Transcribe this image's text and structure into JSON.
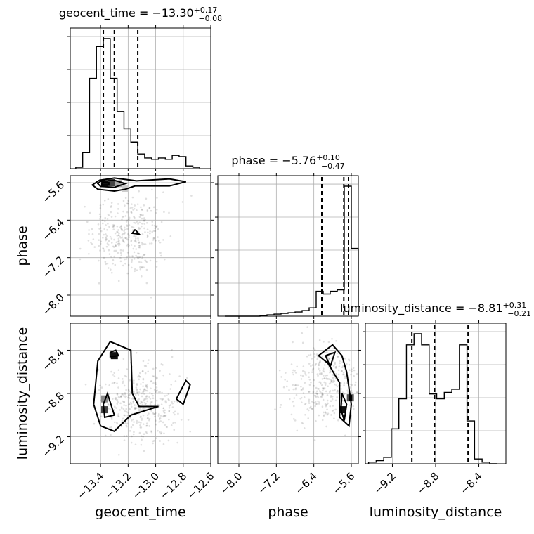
{
  "chart_data": {
    "type": "corner",
    "parameters": [
      "geocent_time",
      "phase",
      "luminosity_distance"
    ],
    "axis_labels": {
      "geocent_time": "geocent_time",
      "phase": "phase",
      "luminosity_distance": "luminosity_distance"
    },
    "ranges": {
      "geocent_time": [
        -13.62,
        -12.6
      ],
      "phase": [
        -8.45,
        -5.45
      ],
      "luminosity_distance": [
        -9.45,
        -8.15
      ]
    },
    "ticks": {
      "geocent_time": [
        -13.4,
        -13.2,
        -13.0,
        -12.8,
        -12.6
      ],
      "phase": [
        -8.0,
        -7.2,
        -6.4,
        -5.6
      ],
      "luminosity_distance": [
        -9.2,
        -8.8,
        -8.4
      ]
    },
    "tick_labels": {
      "geocent_time": [
        "−13.4",
        "−13.2",
        "−13.0",
        "−12.8",
        "−12.6"
      ],
      "phase": [
        "−8.0",
        "−7.2",
        "−6.4",
        "−5.6"
      ],
      "luminosity_distance": [
        "−9.2",
        "−8.8",
        "−8.4"
      ]
    },
    "titles": {
      "geocent_time": {
        "main": "geocent_time = −13.30",
        "sup": "+0.17",
        "sub": "−0.08"
      },
      "phase": {
        "main": "phase = −5.76",
        "sup": "+0.10",
        "sub": "−0.47"
      },
      "luminosity_distance": {
        "main": "luminosity_distance = −8.81",
        "sup": "+0.31",
        "sub": "−0.21"
      }
    },
    "quantiles": {
      "geocent_time": [
        -13.38,
        -13.3,
        -13.13
      ],
      "phase": [
        -6.23,
        -5.76,
        -5.66
      ],
      "luminosity_distance": [
        -9.02,
        -8.81,
        -8.5
      ]
    },
    "histograms": {
      "geocent_time": {
        "edges": [
          -13.58,
          -13.53,
          -13.48,
          -13.43,
          -13.38,
          -13.33,
          -13.28,
          -13.23,
          -13.18,
          -13.13,
          -13.08,
          -13.03,
          -12.98,
          -12.93,
          -12.88,
          -12.83,
          -12.78,
          -12.73,
          -12.68
        ],
        "counts": [
          0.01,
          0.12,
          0.68,
          0.92,
          0.98,
          0.68,
          0.43,
          0.3,
          0.2,
          0.11,
          0.08,
          0.07,
          0.08,
          0.07,
          0.1,
          0.09,
          0.02,
          0.01
        ]
      },
      "phase": {
        "edges": [
          -8.3,
          -8.15,
          -8.0,
          -7.85,
          -7.7,
          -7.55,
          -7.4,
          -7.25,
          -7.1,
          -6.95,
          -6.8,
          -6.65,
          -6.5,
          -6.35,
          -6.2,
          -6.05,
          -5.9,
          -5.75,
          -5.6,
          -5.45
        ],
        "counts": [
          0.0,
          0.0,
          0.0,
          0.0,
          0.0,
          0.005,
          0.01,
          0.015,
          0.02,
          0.025,
          0.03,
          0.04,
          0.06,
          0.18,
          0.16,
          0.18,
          0.19,
          0.94,
          0.49
        ]
      },
      "luminosity_distance": {
        "edges": [
          -9.42,
          -9.35,
          -9.28,
          -9.21,
          -9.14,
          -9.07,
          -9.0,
          -8.93,
          -8.86,
          -8.79,
          -8.72,
          -8.65,
          -8.58,
          -8.51,
          -8.44,
          -8.37,
          -8.3,
          -8.23
        ],
        "counts": [
          0.01,
          0.02,
          0.04,
          0.22,
          0.41,
          0.75,
          0.82,
          0.75,
          0.44,
          0.41,
          0.45,
          0.47,
          0.75,
          0.27,
          0.03,
          0.01,
          0.0
        ]
      }
    },
    "pairs": [
      {
        "x": "geocent_time",
        "y": "phase",
        "contours": [
          [
            [
              -13.41,
              -5.55
            ],
            [
              -13.3,
              -5.5
            ],
            [
              -13.14,
              -5.56
            ],
            [
              -12.9,
              -5.52
            ],
            [
              -12.78,
              -5.58
            ],
            [
              -12.9,
              -5.67
            ],
            [
              -13.15,
              -5.67
            ],
            [
              -13.22,
              -5.74
            ],
            [
              -13.3,
              -5.78
            ],
            [
              -13.42,
              -5.74
            ],
            [
              -13.46,
              -5.65
            ],
            [
              -13.41,
              -5.55
            ]
          ],
          [
            [
              -13.4,
              -5.57
            ],
            [
              -13.3,
              -5.55
            ],
            [
              -13.22,
              -5.62
            ],
            [
              -13.3,
              -5.7
            ],
            [
              -13.4,
              -5.68
            ],
            [
              -13.42,
              -5.62
            ],
            [
              -13.4,
              -5.57
            ]
          ],
          [
            [
              -13.39,
              -5.6
            ],
            [
              -13.34,
              -5.6
            ],
            [
              -13.34,
              -5.65
            ],
            [
              -13.39,
              -5.65
            ],
            [
              -13.39,
              -5.6
            ]
          ],
          [
            [
              -13.15,
              -6.6
            ],
            [
              -13.12,
              -6.7
            ],
            [
              -13.17,
              -6.68
            ],
            [
              -13.15,
              -6.6
            ]
          ]
        ],
        "density_cells": [
          {
            "x": -13.37,
            "y": -5.62,
            "shade": "#111"
          },
          {
            "x": -13.32,
            "y": -5.6,
            "shade": "#444"
          },
          {
            "x": -13.27,
            "y": -5.62,
            "shade": "#aaa"
          },
          {
            "x": -13.22,
            "y": -5.72,
            "shade": "#ccc"
          }
        ],
        "scatter_center": [
          -13.2,
          -6.7
        ],
        "scatter_count": 350
      },
      {
        "x": "geocent_time",
        "y": "luminosity_distance",
        "contours": [
          [
            [
              -13.45,
              -8.9
            ],
            [
              -13.42,
              -8.5
            ],
            [
              -13.33,
              -8.32
            ],
            [
              -13.18,
              -8.4
            ],
            [
              -13.17,
              -8.8
            ],
            [
              -13.12,
              -8.92
            ],
            [
              -12.98,
              -8.92
            ],
            [
              -13.18,
              -9.0
            ],
            [
              -13.3,
              -9.15
            ],
            [
              -13.4,
              -9.1
            ],
            [
              -13.45,
              -8.9
            ]
          ],
          [
            [
              -13.38,
              -8.9
            ],
            [
              -13.35,
              -8.8
            ],
            [
              -13.3,
              -9.0
            ],
            [
              -13.37,
              -9.02
            ],
            [
              -13.38,
              -8.9
            ]
          ],
          [
            [
              -13.33,
              -8.42
            ],
            [
              -13.29,
              -8.4
            ],
            [
              -13.27,
              -8.45
            ],
            [
              -13.33,
              -8.46
            ],
            [
              -13.33,
              -8.42
            ]
          ],
          [
            [
              -12.85,
              -8.85
            ],
            [
              -12.78,
              -8.68
            ],
            [
              -12.75,
              -8.72
            ],
            [
              -12.8,
              -8.9
            ],
            [
              -12.85,
              -8.85
            ]
          ]
        ],
        "density_cells": [
          {
            "x": -13.3,
            "y": -8.45,
            "shade": "#111"
          },
          {
            "x": -13.37,
            "y": -8.95,
            "shade": "#444"
          },
          {
            "x": -13.37,
            "y": -8.85,
            "shade": "#888"
          }
        ],
        "scatter_center": [
          -13.1,
          -8.9
        ],
        "scatter_count": 420
      },
      {
        "x": "phase",
        "y": "luminosity_distance",
        "contours": [
          [
            [
              -6.3,
              -8.45
            ],
            [
              -6.0,
              -8.35
            ],
            [
              -5.8,
              -8.45
            ],
            [
              -5.7,
              -8.6
            ],
            [
              -5.6,
              -8.9
            ],
            [
              -5.65,
              -9.1
            ],
            [
              -5.85,
              -9.02
            ],
            [
              -5.85,
              -8.7
            ],
            [
              -6.1,
              -8.52
            ],
            [
              -6.3,
              -8.45
            ]
          ],
          [
            [
              -6.15,
              -8.45
            ],
            [
              -5.95,
              -8.42
            ],
            [
              -6.05,
              -8.55
            ],
            [
              -6.15,
              -8.45
            ]
          ],
          [
            [
              -5.8,
              -8.8
            ],
            [
              -5.7,
              -8.9
            ],
            [
              -5.75,
              -9.05
            ],
            [
              -5.82,
              -8.95
            ],
            [
              -5.8,
              -8.8
            ]
          ],
          [
            [
              -5.64,
              -8.82
            ],
            [
              -5.6,
              -8.82
            ],
            [
              -5.6,
              -8.86
            ],
            [
              -5.64,
              -8.86
            ],
            [
              -5.64,
              -8.82
            ]
          ]
        ],
        "density_cells": [
          {
            "x": -5.78,
            "y": -8.95,
            "shade": "#111"
          },
          {
            "x": -5.62,
            "y": -8.84,
            "shade": "#555"
          }
        ],
        "scatter_center": [
          -6.1,
          -8.7
        ],
        "scatter_count": 380
      }
    ]
  }
}
